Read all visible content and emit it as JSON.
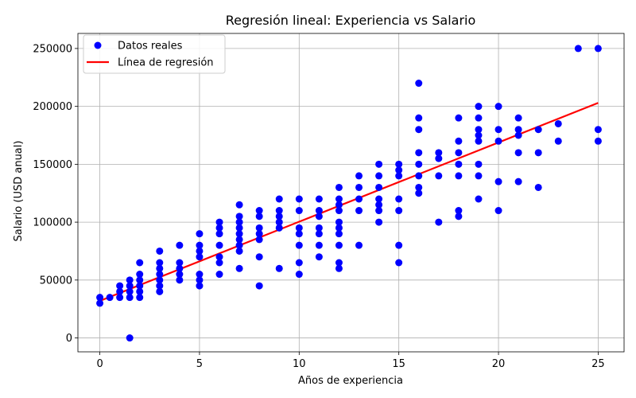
{
  "chart_data": {
    "type": "scatter",
    "title": "Regresión lineal: Experiencia vs Salario",
    "xlabel": "Años de experiencia",
    "ylabel": "Salario (USD anual)",
    "xlim": [
      -1.1,
      26.3
    ],
    "ylim": [
      -12000,
      263000
    ],
    "x_ticks": [
      0,
      5,
      10,
      15,
      20,
      25
    ],
    "y_ticks": [
      0,
      50000,
      100000,
      150000,
      200000,
      250000
    ],
    "grid": true,
    "legend_position": "top-left",
    "legend": [
      {
        "label": "Datos reales",
        "marker": "dot",
        "color": "#0000ff"
      },
      {
        "label": "Línea de regresión",
        "marker": "line",
        "color": "#ff0000"
      }
    ],
    "series": [
      {
        "name": "Datos reales",
        "kind": "scatter",
        "color": "#0000ff",
        "points": [
          [
            0,
            30000
          ],
          [
            0,
            35000
          ],
          [
            0.5,
            35000
          ],
          [
            1,
            35000
          ],
          [
            1,
            40000
          ],
          [
            1,
            45000
          ],
          [
            1.5,
            0
          ],
          [
            1.5,
            35000
          ],
          [
            1.5,
            40000
          ],
          [
            1.5,
            45000
          ],
          [
            1.5,
            50000
          ],
          [
            2,
            35000
          ],
          [
            2,
            40000
          ],
          [
            2,
            45000
          ],
          [
            2,
            50000
          ],
          [
            2,
            55000
          ],
          [
            2,
            65000
          ],
          [
            3,
            40000
          ],
          [
            3,
            45000
          ],
          [
            3,
            50000
          ],
          [
            3,
            55000
          ],
          [
            3,
            60000
          ],
          [
            3,
            65000
          ],
          [
            3,
            75000
          ],
          [
            4,
            50000
          ],
          [
            4,
            55000
          ],
          [
            4,
            60000
          ],
          [
            4,
            65000
          ],
          [
            4,
            80000
          ],
          [
            5,
            45000
          ],
          [
            5,
            50000
          ],
          [
            5,
            55000
          ],
          [
            5,
            70000
          ],
          [
            5,
            75000
          ],
          [
            5,
            80000
          ],
          [
            5,
            90000
          ],
          [
            6,
            55000
          ],
          [
            6,
            65000
          ],
          [
            6,
            70000
          ],
          [
            6,
            80000
          ],
          [
            6,
            90000
          ],
          [
            6,
            95000
          ],
          [
            6,
            100000
          ],
          [
            7,
            60000
          ],
          [
            7,
            75000
          ],
          [
            7,
            80000
          ],
          [
            7,
            85000
          ],
          [
            7,
            90000
          ],
          [
            7,
            95000
          ],
          [
            7,
            100000
          ],
          [
            7,
            105000
          ],
          [
            7,
            115000
          ],
          [
            8,
            45000
          ],
          [
            8,
            70000
          ],
          [
            8,
            85000
          ],
          [
            8,
            90000
          ],
          [
            8,
            95000
          ],
          [
            8,
            105000
          ],
          [
            8,
            110000
          ],
          [
            9,
            60000
          ],
          [
            9,
            95000
          ],
          [
            9,
            100000
          ],
          [
            9,
            105000
          ],
          [
            9,
            110000
          ],
          [
            9,
            120000
          ],
          [
            10,
            55000
          ],
          [
            10,
            65000
          ],
          [
            10,
            80000
          ],
          [
            10,
            90000
          ],
          [
            10,
            95000
          ],
          [
            10,
            110000
          ],
          [
            10,
            120000
          ],
          [
            11,
            70000
          ],
          [
            11,
            80000
          ],
          [
            11,
            90000
          ],
          [
            11,
            95000
          ],
          [
            11,
            105000
          ],
          [
            11,
            110000
          ],
          [
            11,
            120000
          ],
          [
            12,
            60000
          ],
          [
            12,
            65000
          ],
          [
            12,
            80000
          ],
          [
            12,
            90000
          ],
          [
            12,
            95000
          ],
          [
            12,
            100000
          ],
          [
            12,
            110000
          ],
          [
            12,
            115000
          ],
          [
            12,
            120000
          ],
          [
            12,
            130000
          ],
          [
            13,
            80000
          ],
          [
            13,
            110000
          ],
          [
            13,
            120000
          ],
          [
            13,
            130000
          ],
          [
            13,
            140000
          ],
          [
            14,
            100000
          ],
          [
            14,
            110000
          ],
          [
            14,
            115000
          ],
          [
            14,
            120000
          ],
          [
            14,
            130000
          ],
          [
            14,
            140000
          ],
          [
            14,
            150000
          ],
          [
            15,
            65000
          ],
          [
            15,
            80000
          ],
          [
            15,
            110000
          ],
          [
            15,
            120000
          ],
          [
            15,
            140000
          ],
          [
            15,
            145000
          ],
          [
            15,
            150000
          ],
          [
            16,
            125000
          ],
          [
            16,
            130000
          ],
          [
            16,
            140000
          ],
          [
            16,
            150000
          ],
          [
            16,
            160000
          ],
          [
            16,
            180000
          ],
          [
            16,
            190000
          ],
          [
            16,
            220000
          ],
          [
            17,
            100000
          ],
          [
            17,
            140000
          ],
          [
            17,
            155000
          ],
          [
            17,
            160000
          ],
          [
            18,
            105000
          ],
          [
            18,
            110000
          ],
          [
            18,
            140000
          ],
          [
            18,
            150000
          ],
          [
            18,
            160000
          ],
          [
            18,
            170000
          ],
          [
            18,
            190000
          ],
          [
            19,
            120000
          ],
          [
            19,
            140000
          ],
          [
            19,
            150000
          ],
          [
            19,
            170000
          ],
          [
            19,
            175000
          ],
          [
            19,
            180000
          ],
          [
            19,
            190000
          ],
          [
            19,
            200000
          ],
          [
            20,
            110000
          ],
          [
            20,
            135000
          ],
          [
            20,
            170000
          ],
          [
            20,
            180000
          ],
          [
            20,
            200000
          ],
          [
            21,
            135000
          ],
          [
            21,
            160000
          ],
          [
            21,
            175000
          ],
          [
            21,
            180000
          ],
          [
            21,
            190000
          ],
          [
            22,
            130000
          ],
          [
            22,
            160000
          ],
          [
            22,
            180000
          ],
          [
            23,
            170000
          ],
          [
            23,
            185000
          ],
          [
            24,
            250000
          ],
          [
            25,
            170000
          ],
          [
            25,
            180000
          ],
          [
            25,
            250000
          ]
        ]
      },
      {
        "name": "Línea de regresión",
        "kind": "line",
        "color": "#ff0000",
        "x": [
          0,
          25
        ],
        "y": [
          32000,
          203000
        ]
      }
    ]
  }
}
